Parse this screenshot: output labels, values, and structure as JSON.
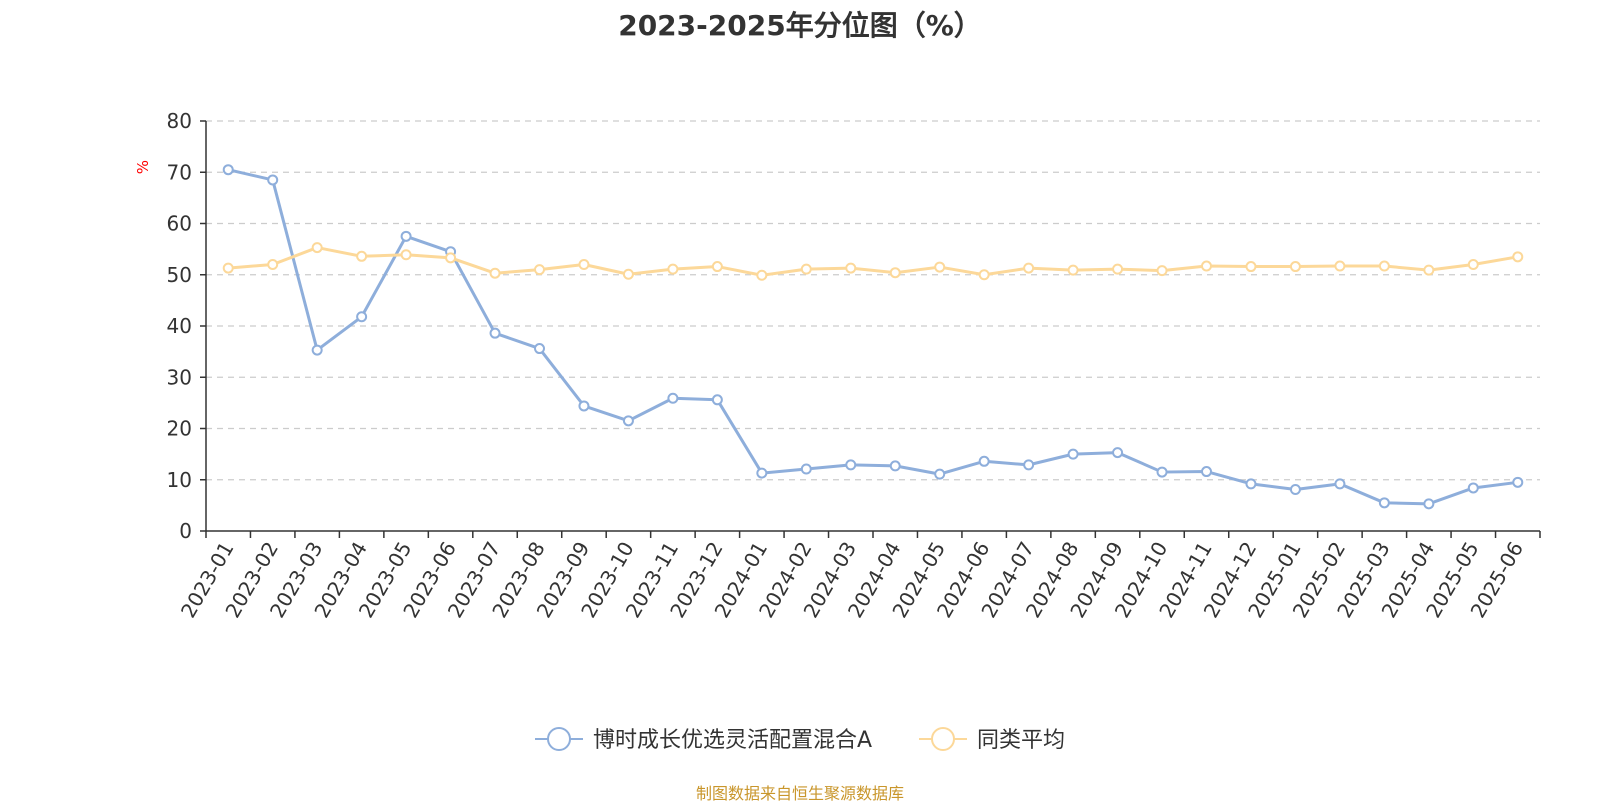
{
  "chart_data": {
    "type": "line",
    "title": "2023-2025年分位图（%）",
    "ylabel": "%",
    "xlabel": "",
    "ylim": [
      0,
      80
    ],
    "yticks": [
      0,
      10,
      20,
      30,
      40,
      50,
      60,
      70,
      80
    ],
    "grid": true,
    "legend_position": "bottom",
    "x": [
      "2023-01",
      "2023-02",
      "2023-03",
      "2023-04",
      "2023-05",
      "2023-06",
      "2023-07",
      "2023-08",
      "2023-09",
      "2023-10",
      "2023-11",
      "2023-12",
      "2024-01",
      "2024-02",
      "2024-03",
      "2024-04",
      "2024-05",
      "2024-06",
      "2024-07",
      "2024-08",
      "2024-09",
      "2024-10",
      "2024-11",
      "2024-12",
      "2025-01",
      "2025-02",
      "2025-03",
      "2025-04",
      "2025-05",
      "2025-06"
    ],
    "series": [
      {
        "name": "博时成长优选灵活配置混合A",
        "color": "#8eaedb",
        "values": [
          70.5,
          68.5,
          35.3,
          41.8,
          57.5,
          54.5,
          38.6,
          35.6,
          24.4,
          21.5,
          25.9,
          25.6,
          11.3,
          12.1,
          12.9,
          12.7,
          11.1,
          13.6,
          12.9,
          15.0,
          15.3,
          11.5,
          11.6,
          9.2,
          8.1,
          9.2,
          5.5,
          5.3,
          8.4,
          9.5
        ]
      },
      {
        "name": "同类平均",
        "color": "#fcd899",
        "values": [
          51.3,
          52.0,
          55.3,
          53.6,
          53.9,
          53.3,
          50.3,
          51.0,
          52.0,
          50.1,
          51.1,
          51.6,
          49.9,
          51.1,
          51.3,
          50.4,
          51.5,
          50.0,
          51.3,
          50.9,
          51.1,
          50.8,
          51.7,
          51.6,
          51.6,
          51.7,
          51.7,
          50.9,
          52.0,
          53.5
        ]
      }
    ]
  },
  "source_note": "制图数据来自恒生聚源数据库"
}
